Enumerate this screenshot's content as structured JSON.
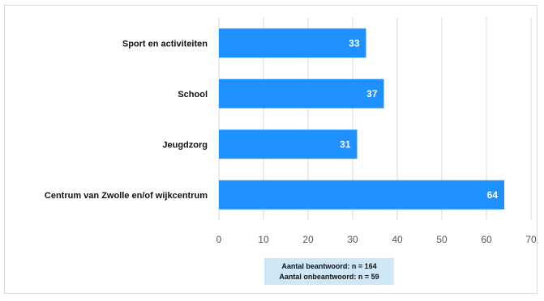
{
  "chart_data": {
    "type": "bar",
    "orientation": "horizontal",
    "categories": [
      "Sport en activiteiten",
      "School",
      "Jeugdzorg",
      "Centrum van Zwolle en/of wijkcentrum"
    ],
    "values": [
      33,
      37,
      31,
      64
    ],
    "xlim": [
      0,
      70
    ],
    "xticks": [
      0,
      10,
      20,
      30,
      40,
      50,
      60,
      70
    ],
    "grid": "vertical",
    "bar_color": "#1e90ff",
    "grid_color": "#d9d9d9"
  },
  "note": {
    "line1": "Aantal beantwoord: n = 164",
    "line2": "Aantal onbeantwoord: n = 59"
  }
}
